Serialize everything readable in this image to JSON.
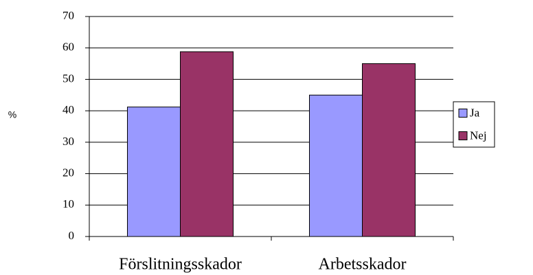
{
  "chart_data": {
    "type": "bar",
    "y_label": "%",
    "categories": [
      "Förslitningsskador",
      "Arbetsskador"
    ],
    "series": [
      {
        "name": "Ja",
        "color": "#9999ff",
        "values": [
          41.2,
          45
        ]
      },
      {
        "name": "Nej",
        "color": "#993366",
        "values": [
          58.8,
          55
        ]
      }
    ],
    "ylim": [
      0,
      70
    ],
    "yticks": [
      0,
      10,
      20,
      30,
      40,
      50,
      60,
      70
    ],
    "grid": true,
    "legend": "right"
  }
}
